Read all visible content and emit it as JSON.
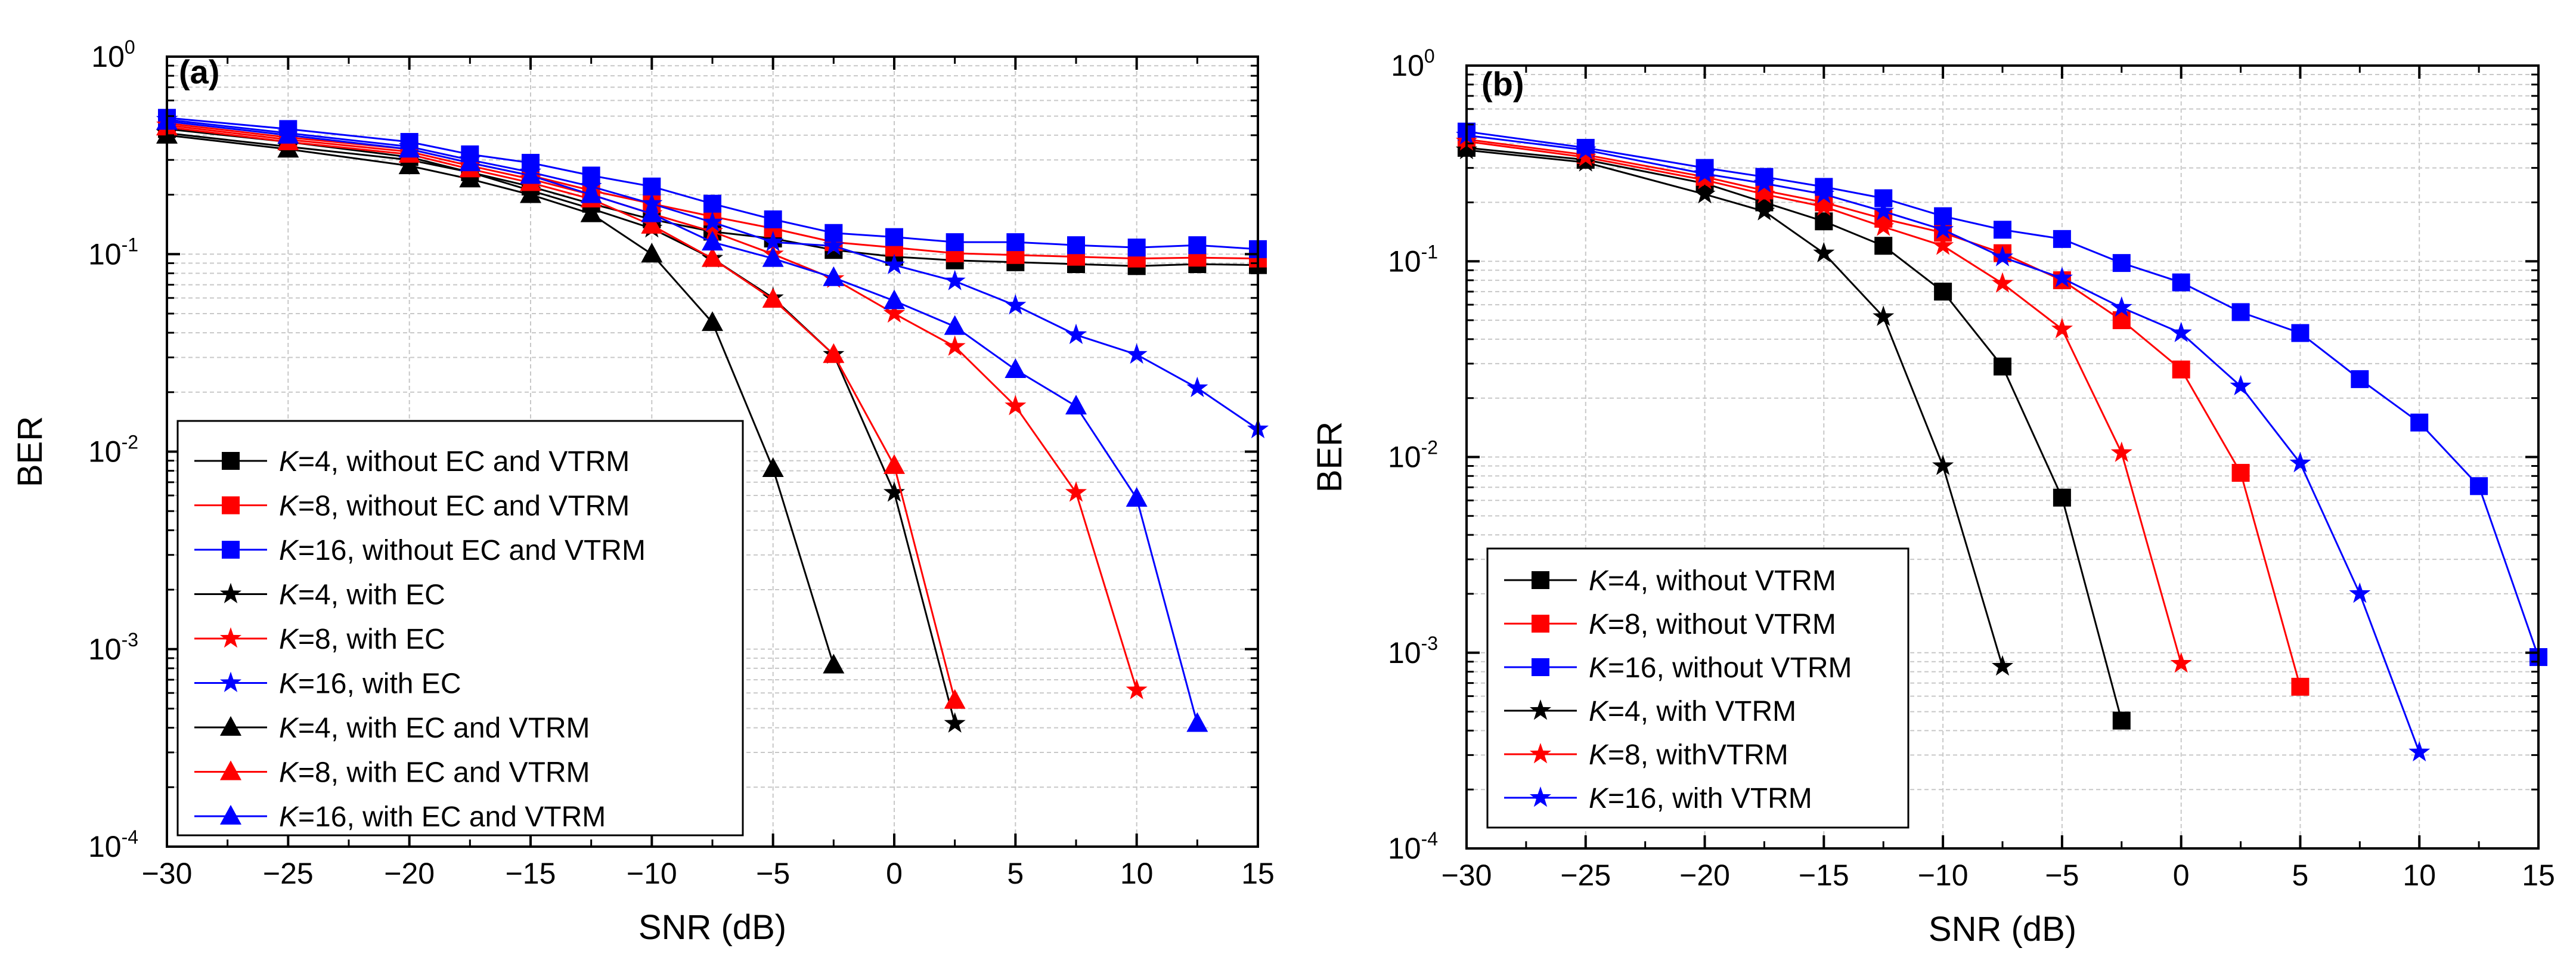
{
  "chart_data": [
    {
      "id": "a",
      "type": "line",
      "panel_label": "(a)",
      "xlabel": "SNR (dB)",
      "ylabel": "BER",
      "xscale": "linear",
      "yscale": "log",
      "xlim": [
        -30,
        15
      ],
      "ylim": [
        0.0001,
        1
      ],
      "xticks": [
        -30,
        -25,
        -20,
        -15,
        -10,
        -5,
        0,
        5,
        10,
        15
      ],
      "xtick_labels": [
        "−30",
        "−25",
        "−20",
        "−15",
        "−10",
        "−5",
        "0",
        "5",
        "10",
        "15"
      ],
      "yticks": [
        {
          "value": 0.0001,
          "base": "10",
          "exp": "-4"
        },
        {
          "value": 0.001,
          "base": "10",
          "exp": "-3"
        },
        {
          "value": 0.01,
          "base": "10",
          "exp": "-2"
        },
        {
          "value": 0.1,
          "base": "10",
          "exp": "-1"
        },
        {
          "value": 1,
          "base": "10",
          "exp": "0"
        }
      ],
      "grid": true,
      "legend_position": "bottom-left",
      "series": [
        {
          "name": "K=4, without EC and VTRM",
          "k": "K",
          "rest": "=4, without EC and VTRM",
          "color": "#000000",
          "marker": "square",
          "x": [
            -30,
            -25,
            -20,
            -17.5,
            -15,
            -12.5,
            -10,
            -7.5,
            -5,
            -2.5,
            0,
            2.5,
            5,
            7.5,
            10,
            12.5,
            15
          ],
          "y": [
            0.43,
            0.37,
            0.31,
            0.26,
            0.22,
            0.18,
            0.15,
            0.13,
            0.12,
            0.105,
            0.097,
            0.093,
            0.091,
            0.089,
            0.087,
            0.089,
            0.088
          ]
        },
        {
          "name": "K=8, without EC and VTRM",
          "k": "K",
          "rest": "=8, without EC and VTRM",
          "color": "#ff0000",
          "marker": "square",
          "x": [
            -30,
            -25,
            -20,
            -17.5,
            -15,
            -12.5,
            -10,
            -7.5,
            -5,
            -2.5,
            0,
            2.5,
            5,
            7.5,
            10,
            12.5,
            15
          ],
          "y": [
            0.46,
            0.39,
            0.34,
            0.29,
            0.25,
            0.21,
            0.18,
            0.155,
            0.135,
            0.115,
            0.108,
            0.101,
            0.099,
            0.097,
            0.095,
            0.096,
            0.095
          ]
        },
        {
          "name": "K=16, without EC and VTRM",
          "k": "K",
          "rest": "=16, without EC and VTRM",
          "color": "#0000ff",
          "marker": "square",
          "x": [
            -30,
            -25,
            -20,
            -17.5,
            -15,
            -12.5,
            -10,
            -7.5,
            -5,
            -2.5,
            0,
            2.5,
            5,
            7.5,
            10,
            12.5,
            15
          ],
          "y": [
            0.49,
            0.43,
            0.37,
            0.32,
            0.29,
            0.25,
            0.22,
            0.18,
            0.15,
            0.128,
            0.122,
            0.115,
            0.115,
            0.111,
            0.108,
            0.111,
            0.106
          ]
        },
        {
          "name": "K=4, with EC",
          "k": "K",
          "rest": "=4, with EC",
          "color": "#000000",
          "marker": "star",
          "x": [
            -30,
            -25,
            -20,
            -17.5,
            -15,
            -12.5,
            -10,
            -7.5,
            -5,
            -2.5,
            0,
            2.5
          ],
          "y": [
            0.41,
            0.35,
            0.3,
            0.26,
            0.21,
            0.17,
            0.135,
            0.095,
            0.06,
            0.031,
            0.0062,
            0.00042
          ]
        },
        {
          "name": "K=8, with EC",
          "k": "K",
          "rest": "=8, with EC",
          "color": "#ff0000",
          "marker": "star",
          "x": [
            -30,
            -25,
            -20,
            -17.5,
            -15,
            -12.5,
            -10,
            -7.5,
            -5,
            -2.5,
            0,
            2.5,
            5,
            7.5,
            10
          ],
          "y": [
            0.45,
            0.38,
            0.33,
            0.28,
            0.24,
            0.2,
            0.16,
            0.13,
            0.1,
            0.075,
            0.05,
            0.034,
            0.017,
            0.0062,
            0.00062
          ]
        },
        {
          "name": "K=16, with EC",
          "k": "K",
          "rest": "=16, with EC",
          "color": "#0000ff",
          "marker": "star",
          "x": [
            -30,
            -25,
            -20,
            -17.5,
            -15,
            -12.5,
            -10,
            -7.5,
            -5,
            -2.5,
            0,
            2.5,
            5,
            7.5,
            10,
            12.5,
            15
          ],
          "y": [
            0.48,
            0.41,
            0.35,
            0.3,
            0.26,
            0.22,
            0.18,
            0.145,
            0.115,
            0.11,
            0.088,
            0.073,
            0.055,
            0.039,
            0.031,
            0.021,
            0.013
          ]
        },
        {
          "name": "K=4, with EC and VTRM",
          "k": "K",
          "rest": "=4, with EC and VTRM",
          "color": "#000000",
          "marker": "triangle",
          "x": [
            -30,
            -25,
            -20,
            -17.5,
            -15,
            -12.5,
            -10,
            -7.5,
            -5,
            -2.5
          ],
          "y": [
            0.4,
            0.34,
            0.28,
            0.24,
            0.2,
            0.16,
            0.1,
            0.045,
            0.0082,
            0.00083
          ]
        },
        {
          "name": "K=8, with EC and VTRM",
          "k": "K",
          "rest": "=8, with EC and VTRM",
          "color": "#ff0000",
          "marker": "triangle",
          "x": [
            -30,
            -25,
            -20,
            -17.5,
            -15,
            -12.5,
            -10,
            -7.5,
            -5,
            -2.5,
            0,
            2.5
          ],
          "y": [
            0.44,
            0.37,
            0.32,
            0.27,
            0.23,
            0.19,
            0.14,
            0.095,
            0.059,
            0.031,
            0.0085,
            0.00055
          ]
        },
        {
          "name": "K=16, with EC and VTRM",
          "k": "K",
          "rest": "=16, with EC and VTRM",
          "color": "#0000ff",
          "marker": "triangle",
          "x": [
            -30,
            -25,
            -20,
            -17.5,
            -15,
            -12.5,
            -10,
            -7.5,
            -5,
            -2.5,
            0,
            2.5,
            5,
            7.5,
            10,
            12.5
          ],
          "y": [
            0.47,
            0.4,
            0.34,
            0.29,
            0.25,
            0.2,
            0.16,
            0.115,
            0.095,
            0.076,
            0.058,
            0.043,
            0.026,
            0.017,
            0.0058,
            0.00042
          ]
        }
      ]
    },
    {
      "id": "b",
      "type": "line",
      "panel_label": "(b)",
      "xlabel": "SNR (dB)",
      "ylabel": "BER",
      "xscale": "linear",
      "yscale": "log",
      "xlim": [
        -30,
        15
      ],
      "ylim": [
        0.0001,
        1
      ],
      "xticks": [
        -30,
        -25,
        -20,
        -15,
        -10,
        -5,
        0,
        5,
        10,
        15
      ],
      "xtick_labels": [
        "−30",
        "−25",
        "−20",
        "−15",
        "−10",
        "−5",
        "0",
        "5",
        "10",
        "15"
      ],
      "yticks": [
        {
          "value": 0.0001,
          "base": "10",
          "exp": "-4"
        },
        {
          "value": 0.001,
          "base": "10",
          "exp": "-3"
        },
        {
          "value": 0.01,
          "base": "10",
          "exp": "-2"
        },
        {
          "value": 0.1,
          "base": "10",
          "exp": "-1"
        },
        {
          "value": 1,
          "base": "10",
          "exp": "0"
        }
      ],
      "grid": true,
      "legend_position": "bottom-left",
      "series": [
        {
          "name": "K=4, without VTRM",
          "k": "K",
          "rest": "=4, without VTRM",
          "color": "#000000",
          "marker": "square",
          "x": [
            -30,
            -25,
            -20,
            -17.5,
            -15,
            -12.5,
            -10,
            -7.5,
            -5,
            -2.5
          ],
          "y": [
            0.38,
            0.33,
            0.25,
            0.2,
            0.16,
            0.12,
            0.07,
            0.029,
            0.0062,
            0.00045
          ]
        },
        {
          "name": "K=8, without VTRM",
          "k": "K",
          "rest": "=8, without VTRM",
          "color": "#ff0000",
          "marker": "square",
          "x": [
            -30,
            -25,
            -20,
            -17.5,
            -15,
            -12.5,
            -10,
            -7.5,
            -5,
            -2.5,
            0,
            2.5,
            5
          ],
          "y": [
            0.42,
            0.35,
            0.27,
            0.23,
            0.2,
            0.165,
            0.14,
            0.11,
            0.08,
            0.05,
            0.028,
            0.0083,
            0.00067
          ]
        },
        {
          "name": "K=16, without VTRM",
          "k": "K",
          "rest": "=16, without VTRM",
          "color": "#0000ff",
          "marker": "square",
          "x": [
            -30,
            -25,
            -20,
            -17.5,
            -15,
            -12.5,
            -10,
            -7.5,
            -5,
            -2.5,
            0,
            2.5,
            5,
            7.5,
            10,
            12.5,
            15
          ],
          "y": [
            0.46,
            0.38,
            0.3,
            0.27,
            0.24,
            0.21,
            0.17,
            0.145,
            0.13,
            0.098,
            0.078,
            0.055,
            0.043,
            0.025,
            0.015,
            0.0071,
            0.00095
          ]
        },
        {
          "name": "K=4, with VTRM",
          "k": "K",
          "rest": "=4, with VTRM",
          "color": "#000000",
          "marker": "star",
          "x": [
            -30,
            -25,
            -20,
            -17.5,
            -15,
            -12.5,
            -10,
            -7.5
          ],
          "y": [
            0.37,
            0.32,
            0.22,
            0.18,
            0.11,
            0.052,
            0.009,
            0.00085
          ]
        },
        {
          "name": "K=8, withVTRM",
          "k": "K",
          "rest": "=8, withVTRM",
          "color": "#ff0000",
          "marker": "star",
          "x": [
            -30,
            -25,
            -20,
            -17.5,
            -15,
            -12.5,
            -10,
            -7.5,
            -5,
            -2.5,
            0
          ],
          "y": [
            0.41,
            0.34,
            0.26,
            0.22,
            0.19,
            0.15,
            0.12,
            0.077,
            0.045,
            0.0105,
            0.00088
          ]
        },
        {
          "name": "K=16, with VTRM",
          "k": "K",
          "rest": "=16, with VTRM",
          "color": "#0000ff",
          "marker": "star",
          "x": [
            -30,
            -25,
            -20,
            -17.5,
            -15,
            -12.5,
            -10,
            -7.5,
            -5,
            -2.5,
            0,
            2.5,
            5,
            7.5,
            10
          ],
          "y": [
            0.44,
            0.37,
            0.28,
            0.25,
            0.22,
            0.18,
            0.145,
            0.105,
            0.082,
            0.058,
            0.043,
            0.023,
            0.0093,
            0.002,
            0.00031
          ]
        }
      ]
    }
  ]
}
